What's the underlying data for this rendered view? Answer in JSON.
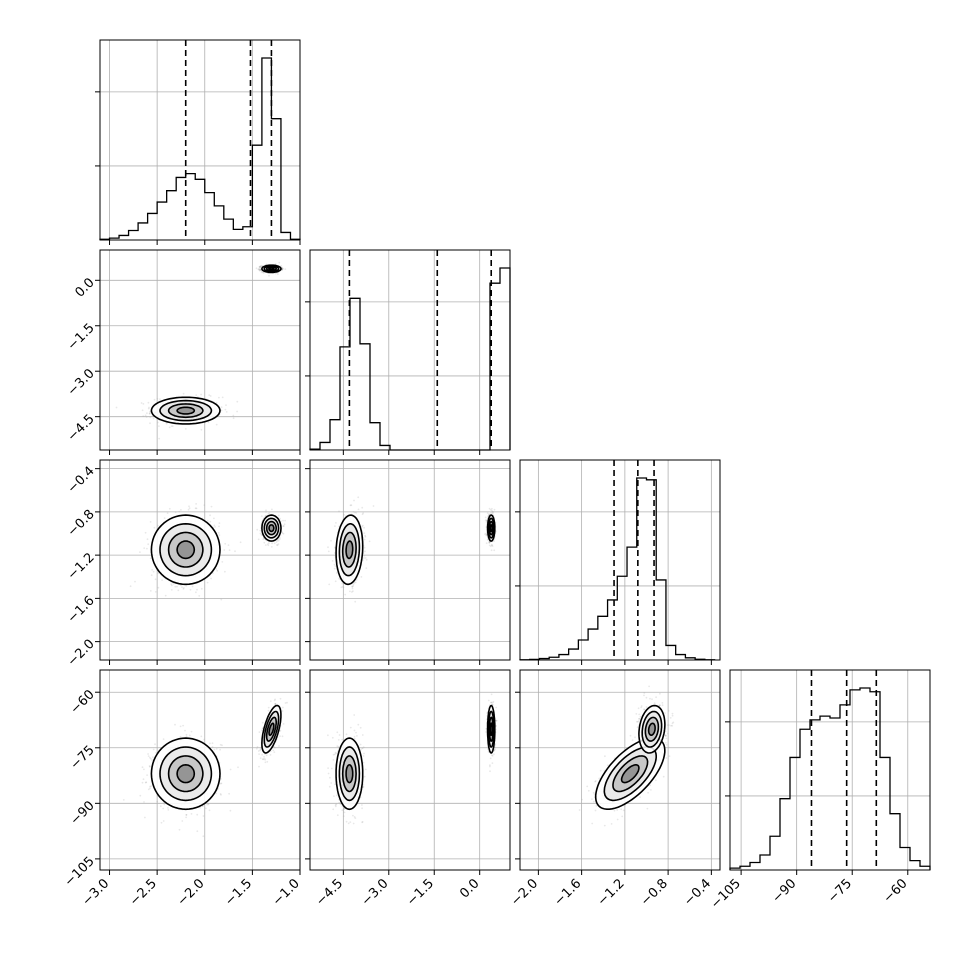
{
  "chart_data": {
    "type": "corner",
    "parameters": [
      {
        "range": [
          -3.1,
          -1.0
        ],
        "ticks": [
          -3.0,
          -2.5,
          -2.0,
          -1.5,
          -1.0
        ],
        "tick_labels": [
          "−3.0",
          "−2.5",
          "−2.0",
          "−1.5",
          "−1.0"
        ],
        "quantiles": [
          -2.2,
          -1.52,
          -1.3
        ]
      },
      {
        "range": [
          -5.6,
          1.0
        ],
        "ticks": [
          -4.5,
          -3.0,
          -1.5,
          0.0
        ],
        "tick_labels": [
          "−4.5",
          "−3.0",
          "−1.5",
          "0.0"
        ],
        "quantiles": [
          -4.3,
          -1.4,
          0.38
        ]
      },
      {
        "range": [
          -2.17,
          -0.32
        ],
        "ticks": [
          -2.0,
          -1.6,
          -1.2,
          -0.8,
          -0.4
        ],
        "tick_labels": [
          "−2.0",
          "−1.6",
          "−1.2",
          "−0.8",
          "−0.4"
        ],
        "quantiles": [
          -1.3,
          -1.08,
          -0.93
        ]
      },
      {
        "range": [
          -108,
          -54
        ],
        "ticks": [
          -105,
          -90,
          -75,
          -60
        ],
        "tick_labels": [
          "−105",
          "−90",
          "−75",
          "−60"
        ],
        "quantiles": [
          -86,
          -76.5,
          -68.5
        ]
      }
    ],
    "histograms": [
      {
        "param": 0,
        "edges": [
          -3.1,
          -3.0,
          -2.9,
          -2.8,
          -2.7,
          -2.6,
          -2.5,
          -2.4,
          -2.3,
          -2.2,
          -2.1,
          -2.0,
          -1.9,
          -1.8,
          -1.7,
          -1.6,
          -1.5,
          -1.4,
          -1.3,
          -1.2,
          -1.1,
          -1.0
        ],
        "counts": [
          0.2,
          0.5,
          1.2,
          2.5,
          4.5,
          7,
          10,
          13,
          16.5,
          17.5,
          16,
          12.5,
          9,
          5.5,
          2.8,
          3.5,
          25,
          48,
          32,
          2,
          0.2
        ]
      },
      {
        "param": 1,
        "edges": [
          -5.6,
          -5.27,
          -4.94,
          -4.61,
          -4.28,
          -3.95,
          -3.62,
          -3.29,
          -2.96,
          -2.63,
          -2.3,
          -1.97,
          -1.64,
          -1.31,
          -0.98,
          -0.65,
          -0.32,
          0.01,
          0.34,
          0.67,
          1.0
        ],
        "counts": [
          0.3,
          2.5,
          10,
          34,
          50,
          35,
          9,
          1.5,
          0,
          0,
          0,
          0,
          0,
          0,
          0,
          0,
          0,
          0,
          55,
          60
        ]
      },
      {
        "param": 2,
        "edges": [
          -2.17,
          -2.08,
          -1.99,
          -1.9,
          -1.81,
          -1.72,
          -1.63,
          -1.54,
          -1.45,
          -1.36,
          -1.27,
          -1.18,
          -1.09,
          -1.0,
          -0.91,
          -0.82,
          -0.73,
          -0.64,
          -0.55,
          -0.46,
          -0.37
        ],
        "counts": [
          0.1,
          0.3,
          0.8,
          1.5,
          3,
          6,
          11,
          17,
          24,
          33,
          46,
          62,
          100,
          99,
          44,
          8,
          3,
          1.2,
          0.4,
          0.1
        ]
      },
      {
        "param": 3,
        "edges": [
          -108,
          -105.3,
          -102.6,
          -99.9,
          -97.2,
          -94.5,
          -91.8,
          -89.1,
          -86.4,
          -83.7,
          -81.0,
          -78.3,
          -75.6,
          -72.9,
          -70.2,
          -67.5,
          -64.8,
          -62.1,
          -59.4,
          -56.7,
          -54.0
        ],
        "counts": [
          1,
          2,
          4,
          8,
          18,
          38,
          60,
          75,
          80,
          82,
          81,
          88,
          96,
          97,
          95,
          60,
          30,
          12,
          5,
          2
        ]
      }
    ],
    "clusters": [
      {
        "p0": -2.2,
        "s0": 0.18,
        "p1": -4.3,
        "s1": 0.22,
        "p2": -1.15,
        "s2": 0.16,
        "p3": -82,
        "s3": 4.8,
        "r12": 0.1,
        "r23": 0.65,
        "r03": 0.0,
        "weight": 0.55
      },
      {
        "p0": -1.3,
        "s0": 0.05,
        "p1": 0.38,
        "s1": 0.06,
        "p2": -0.95,
        "s2": 0.06,
        "p3": -70,
        "s3": 3.2,
        "r12": 0.0,
        "r23": 0.2,
        "r03": 0.6,
        "weight": 0.45
      }
    ]
  }
}
